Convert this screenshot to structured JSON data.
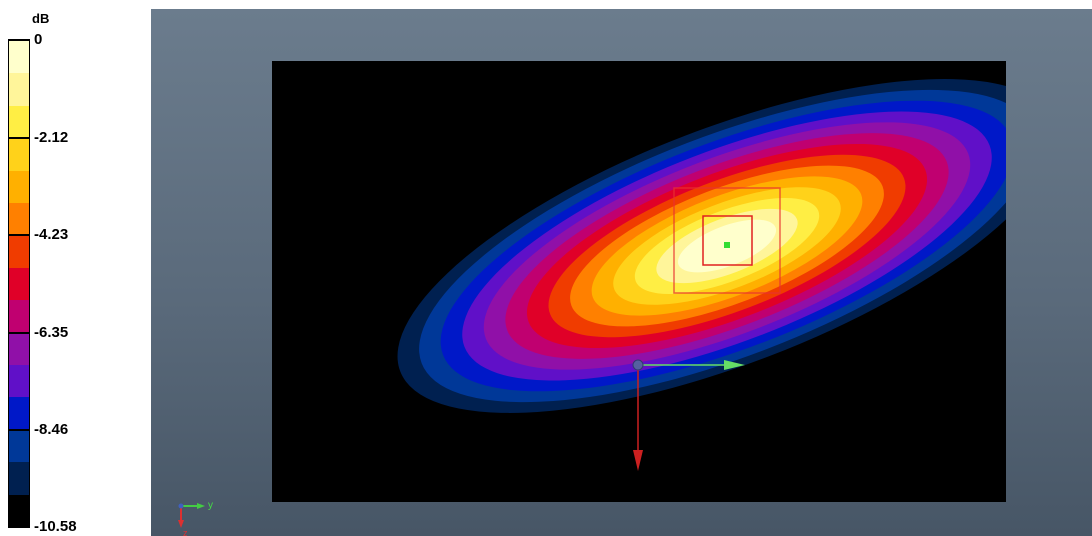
{
  "legend": {
    "unit": "dB",
    "labels": [
      "0",
      "-2.12",
      "-4.23",
      "-6.35",
      "-8.46",
      "-10.58"
    ],
    "bands_top_to_bottom": [
      "#ffffcc",
      "#fff59a",
      "#ffee44",
      "#ffd21a",
      "#ffb000",
      "#ff8000",
      "#f03c00",
      "#e00028",
      "#c00070",
      "#9010a8",
      "#6010c8",
      "#0018c8",
      "#003898",
      "#002050",
      "#000000"
    ]
  },
  "viewport": {
    "background_top": "#6b7c8d",
    "background_bottom": "#475666",
    "plot_background": "#000000",
    "contour_fill_colors_outer_to_inner": [
      "#002050",
      "#003898",
      "#0018c8",
      "#6010c8",
      "#9010a8",
      "#c00070",
      "#e00028",
      "#f03c00",
      "#ff8000",
      "#ffb000",
      "#ffd21a",
      "#ffee44",
      "#fff59a",
      "#ffffcc"
    ],
    "peak_marker_color": "#33dd33",
    "box_color": "#e83030",
    "axis_x_color": "#66dd66",
    "axis_z_color": "#cc2020",
    "triad_y_label": "y",
    "triad_z_label": "z"
  }
}
